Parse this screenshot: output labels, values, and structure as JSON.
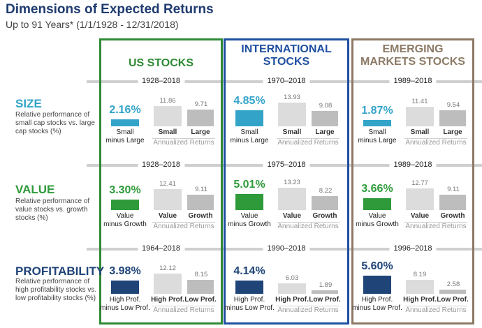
{
  "title": "Dimensions of Expected Returns",
  "subtitle": "Up to 91 Years* (1/1/1928 - 12/31/2018)",
  "colors": {
    "us": "#2f8a35",
    "intl": "#1f4fa0",
    "em": "#8c7a66",
    "size": "#33a3c8",
    "value": "#2f9a3a",
    "profitability": "#1f4478",
    "bar_light": "#dcdcdc",
    "bar_dark": "#bdbdbd"
  },
  "columns": [
    {
      "key": "us",
      "label_lines": [
        "US STOCKS"
      ]
    },
    {
      "key": "intl",
      "label_lines": [
        "INTERNATIONAL",
        "STOCKS"
      ]
    },
    {
      "key": "em",
      "label_lines": [
        "EMERGING",
        "MARKETS STOCKS"
      ]
    }
  ],
  "rows": [
    {
      "key": "size",
      "title": "SIZE",
      "description": "Relative performance of small cap stocks vs. large cap stocks (%)"
    },
    {
      "key": "value",
      "title": "VALUE",
      "description": "Relative performance of value stocks vs. growth stocks (%)"
    },
    {
      "key": "profitability",
      "title": "PROFITABILITY",
      "description": "Relative performance of high profitability stocks vs. low profitability stocks (%)"
    }
  ],
  "annualized_label": "Annualized Returns",
  "chart_data": {
    "type": "bar",
    "title": "Dimensions of Expected Returns",
    "subtitle": "Up to 91 Years* (1/1/1928 - 12/31/2018)",
    "panels": [
      {
        "row": "size",
        "column": "us",
        "period": "1928–2018",
        "premium": 2.16,
        "premium_label": "2.16%",
        "premium_category": [
          "Small",
          "minus Large"
        ],
        "categories": [
          "Small",
          "Large"
        ],
        "values": [
          11.86,
          9.71
        ]
      },
      {
        "row": "size",
        "column": "intl",
        "period": "1970–2018",
        "premium": 4.85,
        "premium_label": "4.85%",
        "premium_category": [
          "Small",
          "minus Large"
        ],
        "categories": [
          "Small",
          "Large"
        ],
        "values": [
          13.93,
          9.08
        ]
      },
      {
        "row": "size",
        "column": "em",
        "period": "1989–2018",
        "premium": 1.87,
        "premium_label": "1.87%",
        "premium_category": [
          "Small",
          "minus Large"
        ],
        "categories": [
          "Small",
          "Large"
        ],
        "values": [
          11.41,
          9.54
        ]
      },
      {
        "row": "value",
        "column": "us",
        "period": "1928–2018",
        "premium": 3.3,
        "premium_label": "3.30%",
        "premium_category": [
          "Value",
          "minus Growth"
        ],
        "categories": [
          "Value",
          "Growth"
        ],
        "values": [
          12.41,
          9.11
        ]
      },
      {
        "row": "value",
        "column": "intl",
        "period": "1975–2018",
        "premium": 5.01,
        "premium_label": "5.01%",
        "premium_category": [
          "Value",
          "minus Growth"
        ],
        "categories": [
          "Value",
          "Growth"
        ],
        "values": [
          13.23,
          8.22
        ]
      },
      {
        "row": "value",
        "column": "em",
        "period": "1989–2018",
        "premium": 3.66,
        "premium_label": "3.66%",
        "premium_category": [
          "Value",
          "minus Growth"
        ],
        "categories": [
          "Value",
          "Growth"
        ],
        "values": [
          12.77,
          9.11
        ]
      },
      {
        "row": "profitability",
        "column": "us",
        "period": "1964–2018",
        "premium": 3.98,
        "premium_label": "3.98%",
        "premium_category": [
          "High Prof.",
          "minus Low Prof."
        ],
        "categories": [
          "High Prof.",
          "Low Prof."
        ],
        "values": [
          12.12,
          8.15
        ]
      },
      {
        "row": "profitability",
        "column": "intl",
        "period": "1990–2018",
        "premium": 4.14,
        "premium_label": "4.14%",
        "premium_category": [
          "High Prof.",
          "minus Low Prof."
        ],
        "categories": [
          "High Prof.",
          "Low Prof."
        ],
        "values": [
          6.03,
          1.89
        ]
      },
      {
        "row": "profitability",
        "column": "em",
        "period": "1996–2018",
        "premium": 5.6,
        "premium_label": "5.60%",
        "premium_category": [
          "High Prof.",
          "minus Low Prof."
        ],
        "categories": [
          "High Prof.",
          "Low Prof."
        ],
        "values": [
          8.19,
          2.58
        ]
      }
    ]
  }
}
